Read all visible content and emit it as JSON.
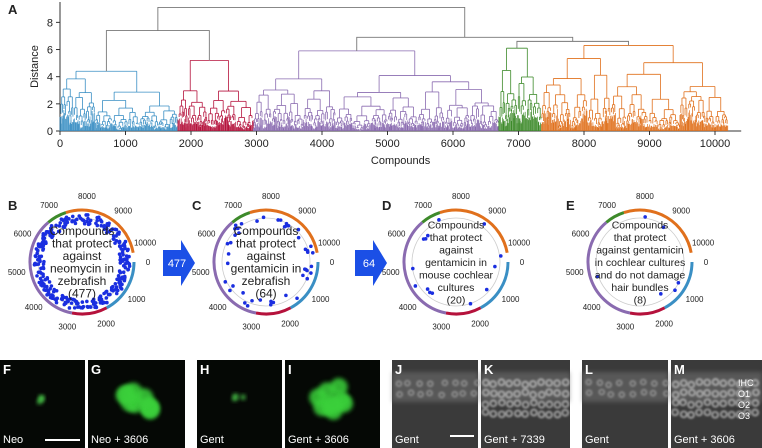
{
  "chart_data": {
    "type": "dendrogram",
    "panel_label": "A",
    "ylabel": "Distance",
    "xlabel": "Compounds",
    "xlim": [
      0,
      10400
    ],
    "xticks": [
      0,
      1000,
      2000,
      3000,
      4000,
      5000,
      6000,
      7000,
      8000,
      9000,
      10000
    ],
    "ylim": [
      0,
      9.5
    ],
    "yticks": [
      0,
      2,
      4,
      6,
      8
    ],
    "clusters": [
      {
        "start": 0,
        "end": 1800,
        "height": 4.4,
        "color": "#3a8fc4"
      },
      {
        "start": 1800,
        "end": 2950,
        "height": 5.2,
        "color": "#b5123c"
      },
      {
        "start": 2950,
        "end": 6700,
        "height": 5.9,
        "color": "#8a6bb0"
      },
      {
        "start": 6700,
        "end": 7350,
        "height": 6.1,
        "color": "#3d8a2a"
      },
      {
        "start": 7350,
        "end": 10200,
        "height": 6.3,
        "color": "#e0701c"
      }
    ],
    "merges": [
      {
        "left": 3,
        "right": 4,
        "height": 6.6
      },
      {
        "left": 2,
        "right": 5,
        "height": 6.9
      },
      {
        "left": 0,
        "right": 1,
        "height": 7.4
      },
      {
        "left": 7,
        "right": 6,
        "height": 9.1
      }
    ]
  },
  "circle_range": 10500,
  "circle_ticks": [
    0,
    1000,
    2000,
    3000,
    4000,
    5000,
    6000,
    7000,
    8000,
    9000,
    10000
  ],
  "circle_panels": [
    {
      "label": "B",
      "lines": [
        "Compounds",
        "that protect",
        "against",
        "neomycin in",
        "zebrafish",
        "(477)"
      ]
    },
    {
      "label": "C",
      "lines": [
        "Compounds",
        "that protect",
        "against",
        "gentamicin in",
        "zebrafish",
        "(64)"
      ]
    },
    {
      "label": "D",
      "lines": [
        "Compounds",
        "that protect",
        "against",
        "gentamicin in",
        "mouse cochlear",
        "cultures",
        "(20)"
      ]
    },
    {
      "label": "E",
      "lines": [
        "Compounds",
        "that protect",
        "against gentamicin",
        "in cochlear cultures",
        "and do not damage",
        "hair bundles",
        "(8)"
      ]
    }
  ],
  "arrows": [
    "477",
    "64"
  ],
  "image_panels": [
    {
      "label": "F",
      "caption": "Neo"
    },
    {
      "label": "G",
      "caption": "Neo + 3606"
    },
    {
      "label": "H",
      "caption": "Gent"
    },
    {
      "label": "I",
      "caption": "Gent + 3606"
    },
    {
      "label": "J",
      "caption": "Gent"
    },
    {
      "label": "K",
      "caption": "Gent + 7339"
    },
    {
      "label": "L",
      "caption": "Gent"
    },
    {
      "label": "M",
      "caption": "Gent + 3606",
      "row_labels": [
        "IHC",
        "O1",
        "O2",
        "O3"
      ]
    }
  ]
}
